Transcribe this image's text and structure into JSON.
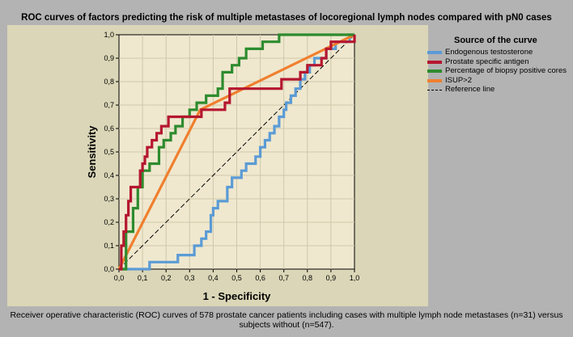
{
  "title": "ROC curves of factors predicting the risk of multiple metastases of locoregional lymph nodes compared with pN0 cases",
  "caption": "Receiver operative characteristic (ROC) curves of 578 prostate cancer patients including cases with multiple lymph node metastases (n=31) versus subjects without (n=547).",
  "legend": {
    "title": "Source of the curve"
  },
  "chart_data": {
    "type": "line",
    "title": "ROC curves of factors predicting the risk of multiple metastases of locoregional lymph nodes compared with pN0 cases",
    "xlabel": "1 - Specificity",
    "ylabel": "Sensitivity",
    "xlim": [
      0,
      1
    ],
    "ylim": [
      0,
      1
    ],
    "xticks": [
      "0,0",
      "0,1",
      "0,2",
      "0,3",
      "0,4",
      "0,5",
      "0,6",
      "0,7",
      "0,8",
      "0,9",
      "1,0"
    ],
    "yticks": [
      "0,0",
      "0,1",
      "0,2",
      "0,3",
      "0,4",
      "0,5",
      "0,6",
      "0,7",
      "0,8",
      "0,9",
      "1,0"
    ],
    "grid": true,
    "legend_position": "right",
    "series": [
      {
        "name": "Endogenous testosterone",
        "color": "#5b9bd5",
        "step": true,
        "x": [
          0,
          0.11,
          0.13,
          0.24,
          0.25,
          0.32,
          0.35,
          0.37,
          0.39,
          0.4,
          0.42,
          0.46,
          0.48,
          0.52,
          0.54,
          0.58,
          0.6,
          0.62,
          0.64,
          0.66,
          0.68,
          0.7,
          0.71,
          0.73,
          0.75,
          0.77,
          0.79,
          0.81,
          0.83,
          0.86,
          0.88,
          0.9,
          0.92,
          0.94,
          0.96,
          0.98,
          1.0
        ],
        "y": [
          0,
          0.0,
          0.03,
          0.03,
          0.06,
          0.1,
          0.13,
          0.16,
          0.23,
          0.26,
          0.29,
          0.35,
          0.39,
          0.42,
          0.45,
          0.48,
          0.52,
          0.55,
          0.58,
          0.61,
          0.65,
          0.68,
          0.71,
          0.74,
          0.77,
          0.81,
          0.84,
          0.87,
          0.9,
          0.9,
          0.94,
          0.94,
          0.97,
          0.97,
          0.97,
          1.0,
          1.0
        ]
      },
      {
        "name": "Prostate specific antigen",
        "color": "#b5162f",
        "step": true,
        "x": [
          0,
          0.01,
          0.02,
          0.03,
          0.04,
          0.05,
          0.06,
          0.07,
          0.09,
          0.1,
          0.11,
          0.12,
          0.14,
          0.16,
          0.18,
          0.21,
          0.24,
          0.35,
          0.45,
          0.47,
          0.69,
          0.77,
          0.8,
          0.83,
          0.86,
          0.88,
          0.9,
          0.93,
          0.97,
          1.0
        ],
        "y": [
          0,
          0.1,
          0.16,
          0.23,
          0.29,
          0.35,
          0.35,
          0.35,
          0.42,
          0.45,
          0.48,
          0.52,
          0.55,
          0.58,
          0.61,
          0.65,
          0.65,
          0.68,
          0.71,
          0.77,
          0.81,
          0.84,
          0.87,
          0.87,
          0.9,
          0.94,
          0.97,
          0.97,
          0.97,
          1.0
        ]
      },
      {
        "name": "Percentage of biopsy positive cores",
        "color": "#2e8b2e",
        "step": true,
        "x": [
          0,
          0.03,
          0.06,
          0.08,
          0.1,
          0.13,
          0.17,
          0.19,
          0.22,
          0.24,
          0.27,
          0.3,
          0.33,
          0.37,
          0.42,
          0.44,
          0.48,
          0.51,
          0.54,
          0.57,
          0.61,
          0.65,
          0.68,
          0.74,
          0.8,
          0.95,
          1.0
        ],
        "y": [
          0,
          0.16,
          0.26,
          0.35,
          0.42,
          0.45,
          0.52,
          0.55,
          0.58,
          0.61,
          0.65,
          0.68,
          0.71,
          0.74,
          0.77,
          0.84,
          0.87,
          0.9,
          0.94,
          0.94,
          0.97,
          0.97,
          1.0,
          1.0,
          1.0,
          1.0,
          1.0
        ]
      },
      {
        "name": "ISUP>2",
        "color": "#f07f2e",
        "step": false,
        "x": [
          0,
          0.345,
          1.0
        ],
        "y": [
          0,
          0.68,
          1.0
        ]
      },
      {
        "name": "Reference line",
        "color": "#000000",
        "dashed": true,
        "x": [
          0,
          1
        ],
        "y": [
          0,
          1
        ]
      }
    ]
  }
}
